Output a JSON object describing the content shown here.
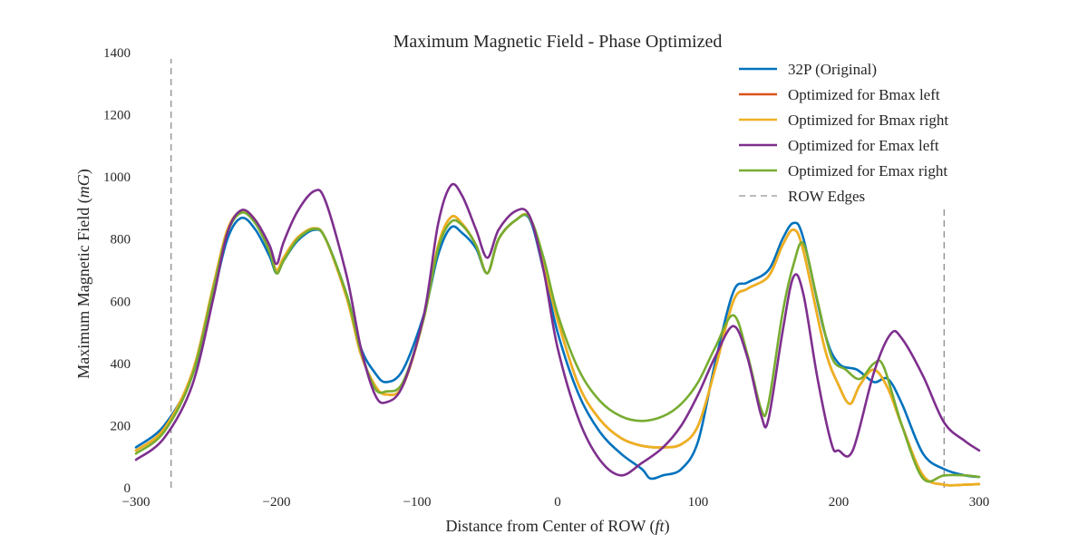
{
  "chart_data": {
    "type": "line",
    "title": "Maximum Magnetic Field - Phase Optimized",
    "xlabel": "Distance from Center of ROW",
    "xlabel_unit": "ft",
    "ylabel": "Maximum Magnetic Field",
    "ylabel_unit": "mG",
    "xlim": [
      -300,
      300
    ],
    "ylim": [
      0,
      1400
    ],
    "xticks": [
      -300,
      -200,
      -100,
      0,
      100,
      200,
      300
    ],
    "yticks": [
      0,
      200,
      400,
      600,
      800,
      1000,
      1200,
      1400
    ],
    "xtick_labels": [
      "−300",
      "−200",
      "−100",
      "0",
      "100",
      "200",
      "300"
    ],
    "ytick_labels": [
      "0",
      "200",
      "400",
      "600",
      "800",
      "1000",
      "1200",
      "1400"
    ],
    "grid": false,
    "legend_position": "top-right",
    "series": [
      {
        "name": "32P (Original)",
        "color": "#0072BD",
        "points": [
          [
            -300,
            130
          ],
          [
            -280,
            200
          ],
          [
            -260,
            360
          ],
          [
            -245,
            620
          ],
          [
            -235,
            800
          ],
          [
            -225,
            868
          ],
          [
            -215,
            830
          ],
          [
            -205,
            745
          ],
          [
            -200,
            690
          ],
          [
            -195,
            730
          ],
          [
            -185,
            795
          ],
          [
            -173,
            830
          ],
          [
            -165,
            800
          ],
          [
            -150,
            620
          ],
          [
            -140,
            450
          ],
          [
            -130,
            370
          ],
          [
            -122,
            340
          ],
          [
            -110,
            380
          ],
          [
            -95,
            560
          ],
          [
            -85,
            750
          ],
          [
            -76,
            837
          ],
          [
            -68,
            820
          ],
          [
            -58,
            770
          ],
          [
            -50,
            690
          ],
          [
            -42,
            800
          ],
          [
            -30,
            860
          ],
          [
            -20,
            865
          ],
          [
            -10,
            700
          ],
          [
            0,
            500
          ],
          [
            15,
            300
          ],
          [
            30,
            180
          ],
          [
            45,
            110
          ],
          [
            60,
            60
          ],
          [
            66,
            30
          ],
          [
            75,
            40
          ],
          [
            88,
            60
          ],
          [
            100,
            150
          ],
          [
            112,
            400
          ],
          [
            125,
            630
          ],
          [
            135,
            660
          ],
          [
            150,
            700
          ],
          [
            160,
            800
          ],
          [
            168,
            852
          ],
          [
            175,
            800
          ],
          [
            190,
            500
          ],
          [
            200,
            400
          ],
          [
            213,
            380
          ],
          [
            225,
            340
          ],
          [
            235,
            350
          ],
          [
            245,
            270
          ],
          [
            260,
            110
          ],
          [
            275,
            60
          ],
          [
            290,
            40
          ],
          [
            300,
            35
          ]
        ]
      },
      {
        "name": "Optimized for Bmax left",
        "color": "#D95319",
        "points": [
          [
            -300,
            120
          ],
          [
            -280,
            190
          ],
          [
            -260,
            370
          ],
          [
            -245,
            650
          ],
          [
            -235,
            830
          ],
          [
            -225,
            890
          ],
          [
            -215,
            860
          ],
          [
            -205,
            760
          ],
          [
            -200,
            700
          ],
          [
            -195,
            740
          ],
          [
            -185,
            805
          ],
          [
            -173,
            835
          ],
          [
            -165,
            800
          ],
          [
            -150,
            610
          ],
          [
            -140,
            430
          ],
          [
            -130,
            330
          ],
          [
            -122,
            300
          ],
          [
            -110,
            330
          ],
          [
            -95,
            550
          ],
          [
            -85,
            780
          ],
          [
            -76,
            870
          ],
          [
            -68,
            850
          ],
          [
            -58,
            780
          ],
          [
            -50,
            690
          ],
          [
            -42,
            800
          ],
          [
            -30,
            860
          ],
          [
            -20,
            870
          ],
          [
            -10,
            720
          ],
          [
            0,
            540
          ],
          [
            15,
            330
          ],
          [
            30,
            220
          ],
          [
            45,
            160
          ],
          [
            60,
            135
          ],
          [
            75,
            130
          ],
          [
            88,
            140
          ],
          [
            100,
            200
          ],
          [
            112,
            380
          ],
          [
            125,
            600
          ],
          [
            135,
            640
          ],
          [
            150,
            680
          ],
          [
            160,
            780
          ],
          [
            168,
            830
          ],
          [
            175,
            760
          ],
          [
            190,
            450
          ],
          [
            200,
            330
          ],
          [
            208,
            270
          ],
          [
            215,
            330
          ],
          [
            225,
            380
          ],
          [
            235,
            320
          ],
          [
            245,
            200
          ],
          [
            260,
            40
          ],
          [
            275,
            10
          ],
          [
            290,
            10
          ],
          [
            300,
            12
          ]
        ]
      },
      {
        "name": "Optimized for Bmax right",
        "color": "#EDB120",
        "points": [
          [
            -300,
            120
          ],
          [
            -280,
            190
          ],
          [
            -260,
            370
          ],
          [
            -245,
            650
          ],
          [
            -235,
            830
          ],
          [
            -225,
            890
          ],
          [
            -215,
            860
          ],
          [
            -205,
            760
          ],
          [
            -200,
            700
          ],
          [
            -195,
            740
          ],
          [
            -185,
            805
          ],
          [
            -173,
            835
          ],
          [
            -165,
            800
          ],
          [
            -150,
            610
          ],
          [
            -140,
            430
          ],
          [
            -130,
            330
          ],
          [
            -122,
            300
          ],
          [
            -110,
            330
          ],
          [
            -95,
            550
          ],
          [
            -85,
            780
          ],
          [
            -76,
            870
          ],
          [
            -68,
            850
          ],
          [
            -58,
            780
          ],
          [
            -50,
            690
          ],
          [
            -42,
            800
          ],
          [
            -30,
            860
          ],
          [
            -20,
            870
          ],
          [
            -10,
            720
          ],
          [
            0,
            540
          ],
          [
            15,
            330
          ],
          [
            30,
            220
          ],
          [
            45,
            160
          ],
          [
            60,
            135
          ],
          [
            75,
            130
          ],
          [
            88,
            140
          ],
          [
            100,
            200
          ],
          [
            112,
            380
          ],
          [
            125,
            600
          ],
          [
            135,
            640
          ],
          [
            150,
            680
          ],
          [
            160,
            780
          ],
          [
            168,
            830
          ],
          [
            175,
            760
          ],
          [
            190,
            450
          ],
          [
            200,
            330
          ],
          [
            208,
            270
          ],
          [
            215,
            330
          ],
          [
            225,
            380
          ],
          [
            235,
            320
          ],
          [
            245,
            200
          ],
          [
            260,
            40
          ],
          [
            275,
            10
          ],
          [
            290,
            10
          ],
          [
            300,
            12
          ]
        ]
      },
      {
        "name": "Optimized for Emax left",
        "color": "#7E2F8E",
        "points": [
          [
            -300,
            90
          ],
          [
            -280,
            160
          ],
          [
            -260,
            330
          ],
          [
            -245,
            610
          ],
          [
            -235,
            820
          ],
          [
            -225,
            893
          ],
          [
            -215,
            860
          ],
          [
            -205,
            780
          ],
          [
            -200,
            720
          ],
          [
            -195,
            790
          ],
          [
            -185,
            890
          ],
          [
            -173,
            955
          ],
          [
            -165,
            920
          ],
          [
            -150,
            680
          ],
          [
            -140,
            450
          ],
          [
            -130,
            300
          ],
          [
            -122,
            275
          ],
          [
            -110,
            330
          ],
          [
            -95,
            560
          ],
          [
            -85,
            850
          ],
          [
            -76,
            972
          ],
          [
            -68,
            940
          ],
          [
            -58,
            830
          ],
          [
            -50,
            740
          ],
          [
            -42,
            830
          ],
          [
            -30,
            890
          ],
          [
            -20,
            875
          ],
          [
            -10,
            700
          ],
          [
            0,
            450
          ],
          [
            15,
            220
          ],
          [
            30,
            90
          ],
          [
            45,
            40
          ],
          [
            60,
            80
          ],
          [
            75,
            130
          ],
          [
            88,
            200
          ],
          [
            100,
            300
          ],
          [
            112,
            420
          ],
          [
            125,
            520
          ],
          [
            135,
            420
          ],
          [
            145,
            230
          ],
          [
            150,
            220
          ],
          [
            160,
            500
          ],
          [
            168,
            680
          ],
          [
            175,
            620
          ],
          [
            185,
            350
          ],
          [
            195,
            140
          ],
          [
            200,
            120
          ],
          [
            210,
            120
          ],
          [
            225,
            370
          ],
          [
            237,
            495
          ],
          [
            245,
            480
          ],
          [
            260,
            360
          ],
          [
            275,
            210
          ],
          [
            290,
            150
          ],
          [
            300,
            120
          ]
        ]
      },
      {
        "name": "Optimized for Emax right",
        "color": "#77AC30",
        "points": [
          [
            -300,
            110
          ],
          [
            -280,
            180
          ],
          [
            -260,
            360
          ],
          [
            -245,
            640
          ],
          [
            -235,
            820
          ],
          [
            -225,
            885
          ],
          [
            -215,
            850
          ],
          [
            -205,
            760
          ],
          [
            -200,
            690
          ],
          [
            -195,
            730
          ],
          [
            -185,
            800
          ],
          [
            -173,
            833
          ],
          [
            -165,
            800
          ],
          [
            -150,
            620
          ],
          [
            -140,
            440
          ],
          [
            -130,
            320
          ],
          [
            -122,
            310
          ],
          [
            -110,
            340
          ],
          [
            -95,
            550
          ],
          [
            -85,
            770
          ],
          [
            -76,
            855
          ],
          [
            -68,
            845
          ],
          [
            -58,
            780
          ],
          [
            -50,
            690
          ],
          [
            -42,
            800
          ],
          [
            -30,
            860
          ],
          [
            -20,
            870
          ],
          [
            -10,
            740
          ],
          [
            0,
            560
          ],
          [
            15,
            380
          ],
          [
            30,
            280
          ],
          [
            45,
            230
          ],
          [
            60,
            215
          ],
          [
            75,
            230
          ],
          [
            88,
            270
          ],
          [
            100,
            340
          ],
          [
            112,
            450
          ],
          [
            125,
            555
          ],
          [
            135,
            430
          ],
          [
            145,
            250
          ],
          [
            150,
            270
          ],
          [
            160,
            560
          ],
          [
            168,
            720
          ],
          [
            175,
            785
          ],
          [
            185,
            600
          ],
          [
            195,
            420
          ],
          [
            205,
            380
          ],
          [
            215,
            350
          ],
          [
            225,
            400
          ],
          [
            232,
            390
          ],
          [
            245,
            200
          ],
          [
            260,
            30
          ],
          [
            275,
            40
          ],
          [
            290,
            40
          ],
          [
            300,
            35
          ]
        ]
      }
    ],
    "row_edges": {
      "name": "ROW Edges",
      "color": "#777777",
      "x": [
        -275,
        275
      ],
      "y_left": [
        0,
        1380
      ],
      "y_right": [
        0,
        900
      ]
    }
  }
}
